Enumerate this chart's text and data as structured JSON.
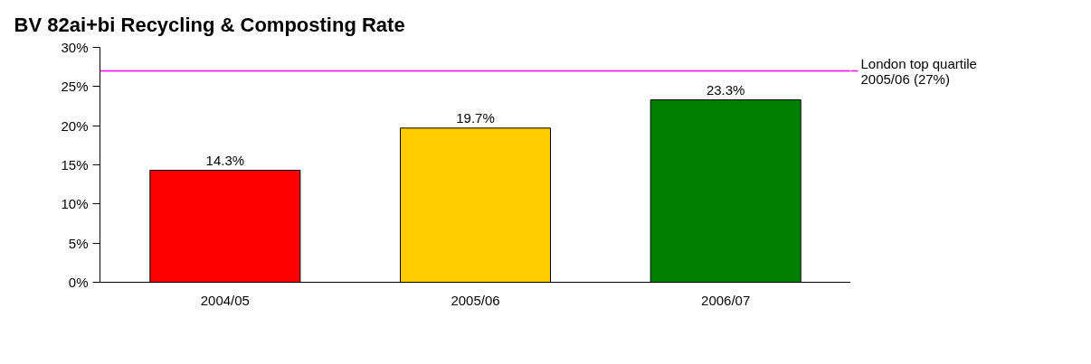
{
  "chart_data": {
    "type": "bar",
    "title": "BV 82ai+bi Recycling & Composting Rate",
    "categories": [
      "2004/05",
      "2005/06",
      "2006/07"
    ],
    "values": [
      14.3,
      19.7,
      23.3
    ],
    "colors": [
      "#ff0000",
      "#ffcc00",
      "#008000"
    ],
    "value_labels": [
      "14.3%",
      "19.7%",
      "23.3%"
    ],
    "ylim": [
      0,
      30
    ],
    "yticks": [
      {
        "value": 0,
        "label": "0%"
      },
      {
        "value": 5,
        "label": "5%"
      },
      {
        "value": 10,
        "label": "10%"
      },
      {
        "value": 15,
        "label": "15%"
      },
      {
        "value": 20,
        "label": "20%"
      },
      {
        "value": 25,
        "label": "25%"
      },
      {
        "value": 30,
        "label": "30%"
      }
    ],
    "ref_lines": [
      {
        "axis": "y",
        "value": 27,
        "label": "London top quartile\n2005/06 (27%)",
        "color": "#ff00ff"
      }
    ],
    "grid": false,
    "legend": "top right"
  }
}
